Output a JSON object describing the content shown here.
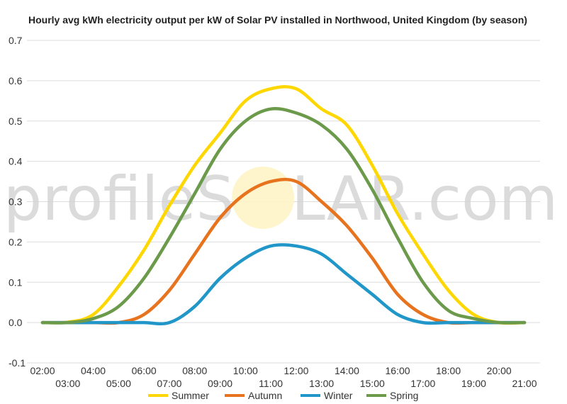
{
  "chart_data": {
    "type": "line",
    "title": "Hourly avg kWh electricity output per kW of Solar PV installed in Northwood, United Kingdom (by season)",
    "watermark": {
      "left": "profileS",
      "right": "LAR.com"
    },
    "xlabel": "",
    "ylabel": "",
    "x": [
      "02:00",
      "03:00",
      "04:00",
      "05:00",
      "06:00",
      "07:00",
      "08:00",
      "09:00",
      "10:00",
      "11:00",
      "12:00",
      "13:00",
      "14:00",
      "15:00",
      "16:00",
      "17:00",
      "18:00",
      "19:00",
      "20:00",
      "21:00"
    ],
    "ylim": [
      -0.1,
      0.7
    ],
    "yticks": [
      -0.1,
      0.0,
      0.1,
      0.2,
      0.3,
      0.4,
      0.5,
      0.6,
      0.7
    ],
    "ytick_labels": [
      "-0.1",
      "0.0",
      "0.1",
      "0.2",
      "0.3",
      "0.4",
      "0.5",
      "0.6",
      "0.7"
    ],
    "grid": true,
    "legend_position": "bottom",
    "series": [
      {
        "name": "Summer",
        "color": "#FFD700",
        "values": [
          0,
          0.001,
          0.02,
          0.09,
          0.18,
          0.29,
          0.39,
          0.47,
          0.55,
          0.58,
          0.58,
          0.53,
          0.49,
          0.39,
          0.27,
          0.17,
          0.08,
          0.02,
          0.0,
          0.0
        ]
      },
      {
        "name": "Autumn",
        "color": "#E8731E",
        "values": [
          0,
          0,
          0,
          0,
          0.02,
          0.08,
          0.17,
          0.26,
          0.32,
          0.35,
          0.35,
          0.3,
          0.24,
          0.16,
          0.07,
          0.02,
          0.0,
          0.0,
          0.0,
          0.0
        ]
      },
      {
        "name": "Winter",
        "color": "#2196C8",
        "values": [
          0,
          0,
          0,
          0,
          0,
          0,
          0.04,
          0.11,
          0.16,
          0.19,
          0.19,
          0.17,
          0.12,
          0.07,
          0.02,
          0.0,
          0.0,
          0.0,
          0.0,
          0.0
        ]
      },
      {
        "name": "Spring",
        "color": "#6B9A4B",
        "values": [
          0,
          0,
          0.01,
          0.04,
          0.11,
          0.21,
          0.32,
          0.43,
          0.5,
          0.53,
          0.52,
          0.49,
          0.43,
          0.33,
          0.21,
          0.1,
          0.03,
          0.01,
          0.0,
          0.0
        ]
      }
    ]
  }
}
